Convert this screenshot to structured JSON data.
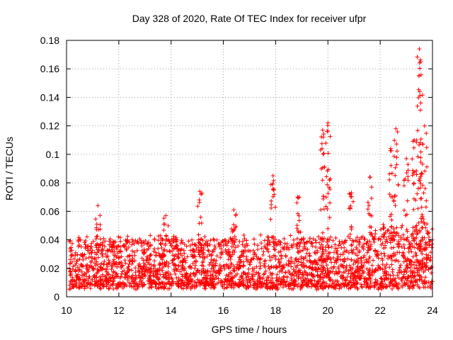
{
  "chart_data": {
    "type": "scatter",
    "title": "Day 328 of 2020, Rate Of TEC Index for receiver ufpr",
    "xlabel": "GPS time / hours",
    "ylabel": "ROTI / TECUs",
    "xlim": [
      10,
      24
    ],
    "ylim": [
      0,
      0.18
    ],
    "xticks": [
      10,
      12,
      14,
      16,
      18,
      20,
      22,
      24
    ],
    "xtick_labels": [
      "10",
      "12",
      "14",
      "16",
      "18",
      "20",
      "22",
      "24"
    ],
    "yticks": [
      0,
      0.02,
      0.04,
      0.06,
      0.08,
      0.1,
      0.12,
      0.14,
      0.16,
      0.18
    ],
    "ytick_labels": [
      "0",
      "0.02",
      "0.04",
      "0.06",
      "0.08",
      "0.1",
      "0.12",
      "0.14",
      "0.16",
      "0.18"
    ],
    "grid": true,
    "marker": "+",
    "color": "#ff0000",
    "series": [
      {
        "name": "ROTI",
        "description": "dense band of points mostly between 0.005 and 0.04 TECU/min from 10.1 to 24 h",
        "baseline_range": [
          0.005,
          0.04
        ],
        "x_start": 10.1,
        "x_end": 24.0,
        "spikes": [
          {
            "x": 11.2,
            "ymax": 0.064
          },
          {
            "x": 13.8,
            "ymax": 0.057
          },
          {
            "x": 15.1,
            "ymax": 0.074
          },
          {
            "x": 16.4,
            "ymax": 0.061
          },
          {
            "x": 17.9,
            "ymax": 0.085
          },
          {
            "x": 18.9,
            "ymax": 0.07
          },
          {
            "x": 19.8,
            "ymax": 0.117
          },
          {
            "x": 20.0,
            "ymax": 0.122
          },
          {
            "x": 20.9,
            "ymax": 0.073
          },
          {
            "x": 21.6,
            "ymax": 0.084
          },
          {
            "x": 22.4,
            "ymax": 0.104
          },
          {
            "x": 22.6,
            "ymax": 0.118
          },
          {
            "x": 23.0,
            "ymax": 0.097
          },
          {
            "x": 23.3,
            "ymax": 0.11
          },
          {
            "x": 23.5,
            "ymax": 0.174
          },
          {
            "x": 23.55,
            "ymax": 0.165
          },
          {
            "x": 23.7,
            "ymax": 0.12
          }
        ]
      }
    ]
  }
}
